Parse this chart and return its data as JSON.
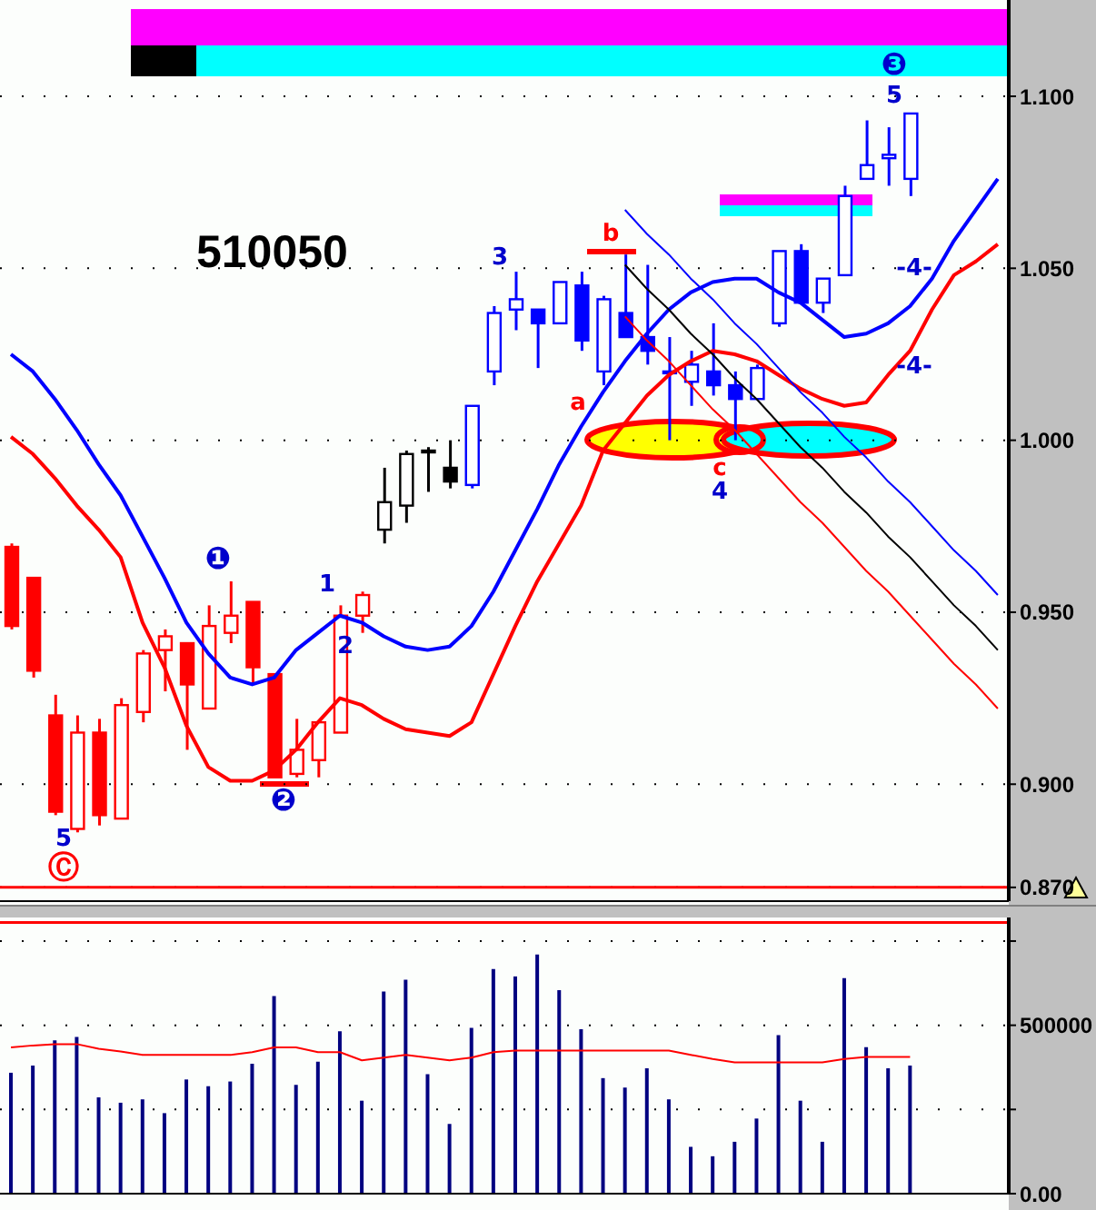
{
  "chart_data": [
    {
      "type": "candlestick",
      "title": "510050",
      "categories": [
        null,
        null,
        null,
        null,
        null,
        null,
        null,
        null,
        null,
        null,
        null,
        null,
        null,
        null,
        null,
        null,
        null,
        null,
        null,
        null,
        null,
        null,
        null,
        null,
        null,
        null,
        null,
        null,
        null,
        null,
        null,
        null,
        null,
        null,
        null,
        null,
        null,
        null,
        null,
        null,
        null,
        null,
        null,
        null,
        null,
        null
      ],
      "ohlc": [
        [
          0.969,
          0.97,
          0.945,
          0.946
        ],
        [
          0.96,
          0.96,
          0.931,
          0.933
        ],
        [
          0.92,
          0.926,
          0.891,
          0.892
        ],
        [
          0.887,
          0.92,
          0.886,
          0.915
        ],
        [
          0.915,
          0.919,
          0.888,
          0.891
        ],
        [
          0.89,
          0.925,
          0.89,
          0.923
        ],
        [
          0.921,
          0.939,
          0.918,
          0.938
        ],
        [
          0.939,
          0.945,
          0.927,
          0.943
        ],
        [
          0.941,
          0.941,
          0.91,
          0.929
        ],
        [
          0.922,
          0.952,
          0.922,
          0.946
        ],
        [
          0.944,
          0.959,
          0.941,
          0.949
        ],
        [
          0.953,
          0.953,
          0.929,
          0.934
        ],
        [
          0.932,
          0.932,
          0.902,
          0.902
        ],
        [
          0.903,
          0.919,
          0.902,
          0.91
        ],
        [
          0.907,
          0.918,
          0.902,
          0.918
        ],
        [
          0.915,
          0.952,
          0.915,
          0.949
        ],
        [
          0.949,
          0.956,
          0.944,
          0.955
        ],
        [
          0.974,
          0.992,
          0.97,
          0.982
        ],
        [
          0.981,
          0.997,
          0.976,
          0.996
        ],
        [
          0.997,
          0.998,
          0.985,
          0.997
        ],
        [
          0.992,
          1.0,
          0.986,
          0.988
        ],
        [
          0.987,
          1.01,
          0.986,
          1.01
        ],
        [
          1.02,
          1.039,
          1.016,
          1.037
        ],
        [
          1.038,
          1.049,
          1.032,
          1.041
        ],
        [
          1.038,
          1.038,
          1.021,
          1.034
        ],
        [
          1.034,
          1.046,
          1.034,
          1.046
        ],
        [
          1.045,
          1.049,
          1.026,
          1.029
        ],
        [
          1.02,
          1.042,
          1.016,
          1.041
        ],
        [
          1.037,
          1.054,
          1.03,
          1.03
        ],
        [
          1.03,
          1.051,
          1.022,
          1.026
        ],
        [
          1.02,
          1.03,
          1.0,
          1.02
        ],
        [
          1.017,
          1.026,
          1.01,
          1.022
        ],
        [
          1.02,
          1.034,
          1.013,
          1.016
        ],
        [
          1.016,
          1.02,
          1.0,
          1.012
        ],
        [
          1.012,
          1.022,
          1.012,
          1.021
        ],
        [
          1.034,
          1.055,
          1.033,
          1.055
        ],
        [
          1.055,
          1.057,
          1.04,
          1.04
        ],
        [
          1.04,
          1.047,
          1.037,
          1.047
        ],
        [
          1.048,
          1.074,
          1.048,
          1.071
        ],
        [
          1.076,
          1.093,
          1.076,
          1.08
        ],
        [
          1.082,
          1.091,
          1.074,
          1.083
        ],
        [
          1.076,
          1.095,
          1.071,
          1.095
        ],
        null,
        null,
        null,
        null
      ],
      "colors": [
        "#ff0000",
        "#ff0000",
        "#ff0000",
        "#ff0000",
        "#ff0000",
        "#ff0000",
        "#ff0000",
        "#ff0000",
        "#ff0000",
        "#ff0000",
        "#ff0000",
        "#ff0000",
        "#ff0000",
        "#ff0000",
        "#ff0000",
        "#ff0000",
        "#ff0000",
        "#000000",
        "#000000",
        "#000000",
        "#000000",
        "#0000ff",
        "#0000ff",
        "#0000ff",
        "#0000ff",
        "#0000ff",
        "#0000ff",
        "#0000ff",
        "#0000ff",
        "#0000ff",
        "#0000ff",
        "#0000ff",
        "#0000ff",
        "#0000ff",
        "#0000ff",
        "#0000ff",
        "#0000ff",
        "#0000ff",
        "#0000ff",
        "#0000ff",
        "#0000ff",
        "#0000ff",
        null,
        null,
        null,
        null
      ],
      "series": [
        {
          "type": "line",
          "color": "#0000ff",
          "values": [
            1.025,
            1.02,
            1.012,
            1.003,
            0.993,
            0.984,
            0.972,
            0.96,
            0.947,
            0.938,
            0.931,
            0.929,
            0.931,
            0.939,
            0.944,
            0.949,
            0.947,
            0.943,
            0.94,
            0.939,
            0.94,
            0.946,
            0.956,
            0.968,
            0.98,
            0.993,
            1.004,
            1.014,
            1.023,
            1.031,
            1.038,
            1.043,
            1.046,
            1.047,
            1.047,
            1.043,
            1.04,
            1.035,
            1.03,
            1.031,
            1.034,
            1.039,
            1.047,
            1.058,
            1.067,
            1.076
          ]
        },
        {
          "type": "line",
          "color": "#ff0000",
          "values": [
            1.001,
            0.996,
            0.989,
            0.981,
            0.974,
            0.966,
            0.947,
            0.934,
            0.917,
            0.905,
            0.901,
            0.901,
            0.904,
            0.91,
            0.918,
            0.925,
            0.923,
            0.919,
            0.916,
            0.915,
            0.914,
            0.918,
            0.932,
            0.946,
            0.959,
            0.97,
            0.981,
            0.997,
            1.005,
            1.013,
            1.019,
            1.023,
            1.026,
            1.025,
            1.023,
            1.019,
            1.015,
            1.012,
            1.01,
            1.011,
            1.019,
            1.026,
            1.038,
            1.048,
            1.052,
            1.057
          ]
        },
        {
          "type": "line",
          "color": "#0000ff",
          "values": [
            null,
            null,
            null,
            null,
            null,
            null,
            null,
            null,
            null,
            null,
            null,
            null,
            null,
            null,
            null,
            null,
            null,
            null,
            null,
            null,
            null,
            null,
            null,
            null,
            null,
            null,
            null,
            null,
            1.067,
            1.06,
            1.054,
            1.047,
            1.041,
            1.034,
            1.028,
            1.021,
            1.014,
            1.008,
            1.001,
            0.995,
            0.988,
            0.982,
            0.975,
            0.968,
            0.962,
            0.955
          ]
        },
        {
          "type": "line",
          "color": "#000000",
          "values": [
            null,
            null,
            null,
            null,
            null,
            null,
            null,
            null,
            null,
            null,
            null,
            null,
            null,
            null,
            null,
            null,
            null,
            null,
            null,
            null,
            null,
            null,
            null,
            null,
            null,
            null,
            null,
            null,
            1.051,
            1.044,
            1.038,
            1.031,
            1.025,
            1.018,
            1.012,
            1.005,
            0.998,
            0.992,
            0.985,
            0.979,
            0.972,
            0.966,
            0.959,
            0.952,
            0.946,
            0.939
          ]
        },
        {
          "type": "line",
          "color": "#ff0000",
          "values": [
            null,
            null,
            null,
            null,
            null,
            null,
            null,
            null,
            null,
            null,
            null,
            null,
            null,
            null,
            null,
            null,
            null,
            null,
            null,
            null,
            null,
            null,
            null,
            null,
            null,
            null,
            null,
            null,
            1.036,
            1.029,
            1.023,
            1.016,
            1.009,
            1.003,
            0.996,
            0.989,
            0.982,
            0.976,
            0.969,
            0.962,
            0.956,
            0.949,
            0.942,
            0.935,
            0.929,
            0.922
          ]
        }
      ],
      "ylim": [
        0.866,
        1.128
      ],
      "yticks": [
        {
          "value": 0.87,
          "label": "0.870"
        },
        {
          "value": 0.9,
          "label": "0.900"
        },
        {
          "value": 0.95,
          "label": "0.950"
        },
        {
          "value": 1.0,
          "label": "1.000"
        },
        {
          "value": 1.05,
          "label": "1.050"
        },
        {
          "value": 1.1,
          "label": "1.100"
        }
      ],
      "tick_labels": "y",
      "grid": "y",
      "ref_lines": [
        {
          "axis": "y",
          "value": 0.87,
          "color": "#ff0000"
        }
      ],
      "annotations": [
        "❶",
        "❷",
        "❸",
        "Ⓒ",
        "5",
        "1",
        "2",
        "3",
        "5",
        "4",
        "-4-",
        "-4-",
        "a",
        "b",
        "c"
      ]
    },
    {
      "type": "bar",
      "categories": [
        null,
        null,
        null,
        null,
        null,
        null,
        null,
        null,
        null,
        null,
        null,
        null,
        null,
        null,
        null,
        null,
        null,
        null,
        null,
        null,
        null,
        null,
        null,
        null,
        null,
        null,
        null,
        null,
        null,
        null,
        null,
        null,
        null,
        null,
        null,
        null,
        null,
        null,
        null,
        null,
        null,
        null,
        null,
        null,
        null,
        null
      ],
      "series": [
        {
          "type": "bar",
          "color": "#000080",
          "values": [
            359000,
            380000,
            455000,
            465000,
            286000,
            270000,
            280000,
            239000,
            339000,
            319000,
            333000,
            386000,
            587000,
            323000,
            392000,
            482000,
            276000,
            600000,
            635000,
            355000,
            207000,
            492000,
            667000,
            645000,
            710000,
            604000,
            488000,
            343000,
            315000,
            372000,
            280000,
            139000,
            111000,
            154000,
            223000,
            471000,
            276000,
            154000,
            640000,
            435000,
            372000,
            380000,
            null,
            null,
            null,
            null
          ]
        },
        {
          "type": "line",
          "color": "#ff0000",
          "values": [
            434000,
            440000,
            444000,
            444000,
            430000,
            422000,
            412000,
            412000,
            412000,
            412000,
            412000,
            420000,
            434000,
            434000,
            420000,
            420000,
            396000,
            404000,
            412000,
            404000,
            396000,
            404000,
            420000,
            425000,
            425000,
            425000,
            425000,
            425000,
            425000,
            425000,
            425000,
            412000,
            400000,
            390000,
            390000,
            390000,
            390000,
            390000,
            400000,
            406000,
            406000,
            406000,
            null,
            null,
            null,
            null
          ]
        }
      ],
      "ylim": [
        0,
        820000
      ],
      "yticks": [
        {
          "value": 0,
          "label": "0.00"
        },
        {
          "value": 250000,
          "label": null
        },
        500000,
        {
          "value": 750000,
          "label": null
        }
      ],
      "tick_labels": "y",
      "grid": "y",
      "ref_lines": [
        {
          "axis": "y",
          "value": 805000,
          "color": "#ff0000"
        }
      ]
    }
  ]
}
